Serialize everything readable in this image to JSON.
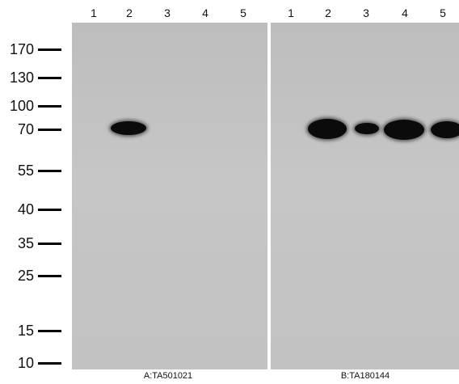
{
  "lanes": [
    "1",
    "2",
    "3",
    "4",
    "5",
    "1",
    "2",
    "3",
    "4",
    "5"
  ],
  "markers": [
    "170",
    "130",
    "100",
    "70",
    "55",
    "40",
    "35",
    "25",
    "15",
    "10"
  ],
  "panels": [
    {
      "caption": "A:TA501021"
    },
    {
      "caption": "B:TA180144"
    }
  ],
  "colors": {
    "membrane": "#c2c2c2",
    "band": "#0b0b0b",
    "divider": "#ffffff",
    "text": "#111111"
  }
}
